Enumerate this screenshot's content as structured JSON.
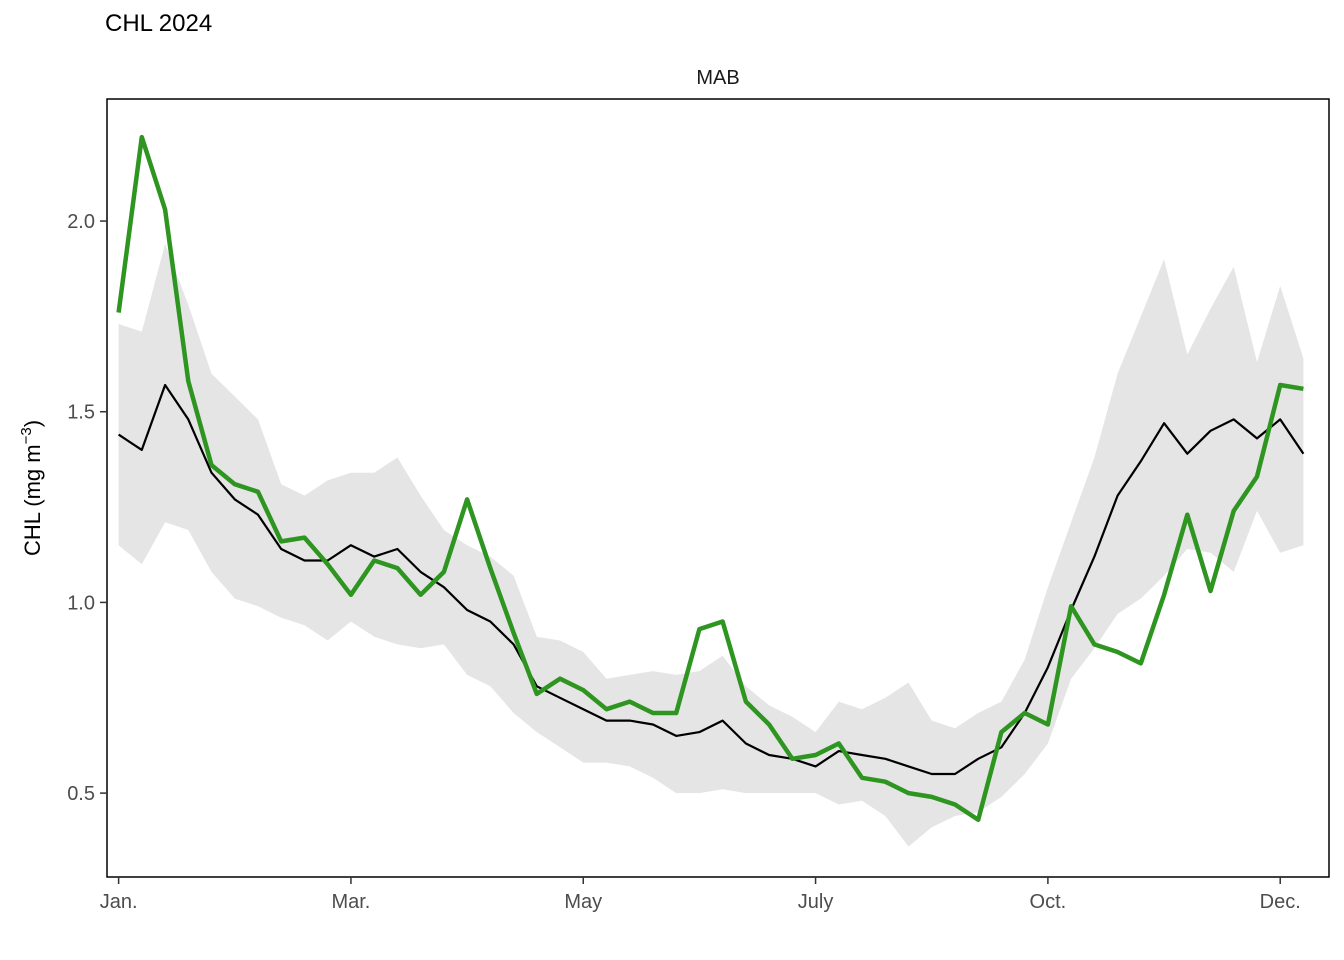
{
  "title": "CHL 2024",
  "chart_data": {
    "type": "line",
    "title": "CHL 2024",
    "panel": "MAB",
    "xlabel": "",
    "ylabel": "CHL (mg m",
    "ylabel_superscript": "−3",
    "ylabel_close": ")",
    "ylim": [
      0.28,
      2.32
    ],
    "yticks": [
      0.5,
      1.0,
      1.5,
      2.0
    ],
    "ytick_labels": [
      "0.5",
      "1.0",
      "1.5",
      "2.0"
    ],
    "x_unit": "day of year",
    "xlim": [
      -5,
      521
    ],
    "xticks": [
      0,
      100,
      200,
      300,
      400,
      500
    ],
    "xtick_labels": [
      "Jan.",
      "Mar.",
      "May",
      "July",
      "Oct.",
      "Dec."
    ],
    "x": [
      0,
      10,
      20,
      30,
      40,
      50,
      60,
      70,
      80,
      90,
      100,
      110,
      120,
      130,
      140,
      150,
      160,
      170,
      180,
      190,
      200,
      210,
      220,
      230,
      240,
      250,
      260,
      270,
      280,
      290,
      300,
      310,
      320,
      330,
      340,
      350,
      360,
      370,
      380,
      390,
      400,
      410,
      420,
      430,
      440,
      450,
      460,
      470,
      480,
      490,
      500,
      510
    ],
    "series": [
      {
        "type": "ribbon",
        "color": "#e5e5e5",
        "upper": [
          1.73,
          1.71,
          1.94,
          1.78,
          1.6,
          1.54,
          1.48,
          1.31,
          1.28,
          1.32,
          1.34,
          1.34,
          1.38,
          1.28,
          1.19,
          1.15,
          1.12,
          1.07,
          0.91,
          0.9,
          0.87,
          0.8,
          0.81,
          0.82,
          0.81,
          0.82,
          0.86,
          0.78,
          0.73,
          0.7,
          0.66,
          0.74,
          0.72,
          0.75,
          0.79,
          0.69,
          0.67,
          0.71,
          0.74,
          0.85,
          1.04,
          1.21,
          1.38,
          1.6,
          1.75,
          1.9,
          1.65,
          1.77,
          1.88,
          1.63,
          1.83,
          1.64
        ],
        "lower": [
          1.15,
          1.1,
          1.21,
          1.19,
          1.08,
          1.01,
          0.99,
          0.96,
          0.94,
          0.9,
          0.95,
          0.91,
          0.89,
          0.88,
          0.89,
          0.81,
          0.78,
          0.71,
          0.66,
          0.62,
          0.58,
          0.58,
          0.57,
          0.54,
          0.5,
          0.5,
          0.51,
          0.5,
          0.5,
          0.5,
          0.5,
          0.47,
          0.48,
          0.44,
          0.36,
          0.41,
          0.44,
          0.45,
          0.49,
          0.55,
          0.63,
          0.8,
          0.88,
          0.97,
          1.01,
          1.07,
          1.14,
          1.13,
          1.08,
          1.24,
          1.13,
          1.15
        ]
      },
      {
        "type": "line",
        "color": "#000000",
        "values": [
          1.44,
          1.4,
          1.57,
          1.48,
          1.34,
          1.27,
          1.23,
          1.14,
          1.11,
          1.11,
          1.15,
          1.12,
          1.14,
          1.08,
          1.04,
          0.98,
          0.95,
          0.89,
          0.78,
          0.75,
          0.72,
          0.69,
          0.69,
          0.68,
          0.65,
          0.66,
          0.69,
          0.63,
          0.6,
          0.59,
          0.57,
          0.61,
          0.6,
          0.59,
          0.57,
          0.55,
          0.55,
          0.59,
          0.62,
          0.71,
          0.83,
          0.98,
          1.12,
          1.28,
          1.37,
          1.47,
          1.39,
          1.45,
          1.48,
          1.43,
          1.48,
          1.39
        ]
      },
      {
        "type": "line",
        "color": "#2e9521",
        "values": [
          1.76,
          2.22,
          2.03,
          1.58,
          1.36,
          1.31,
          1.29,
          1.16,
          1.17,
          1.1,
          1.02,
          1.11,
          1.09,
          1.02,
          1.08,
          1.27,
          1.09,
          0.92,
          0.76,
          0.8,
          0.77,
          0.72,
          0.74,
          0.71,
          0.71,
          0.93,
          0.95,
          0.74,
          0.68,
          0.59,
          0.6,
          0.63,
          0.54,
          0.53,
          0.5,
          0.49,
          0.47,
          0.43,
          0.66,
          0.71,
          0.68,
          0.99,
          0.89,
          0.87,
          0.84,
          1.02,
          1.23,
          1.03,
          1.24,
          1.33,
          1.57,
          1.56
        ]
      }
    ]
  }
}
